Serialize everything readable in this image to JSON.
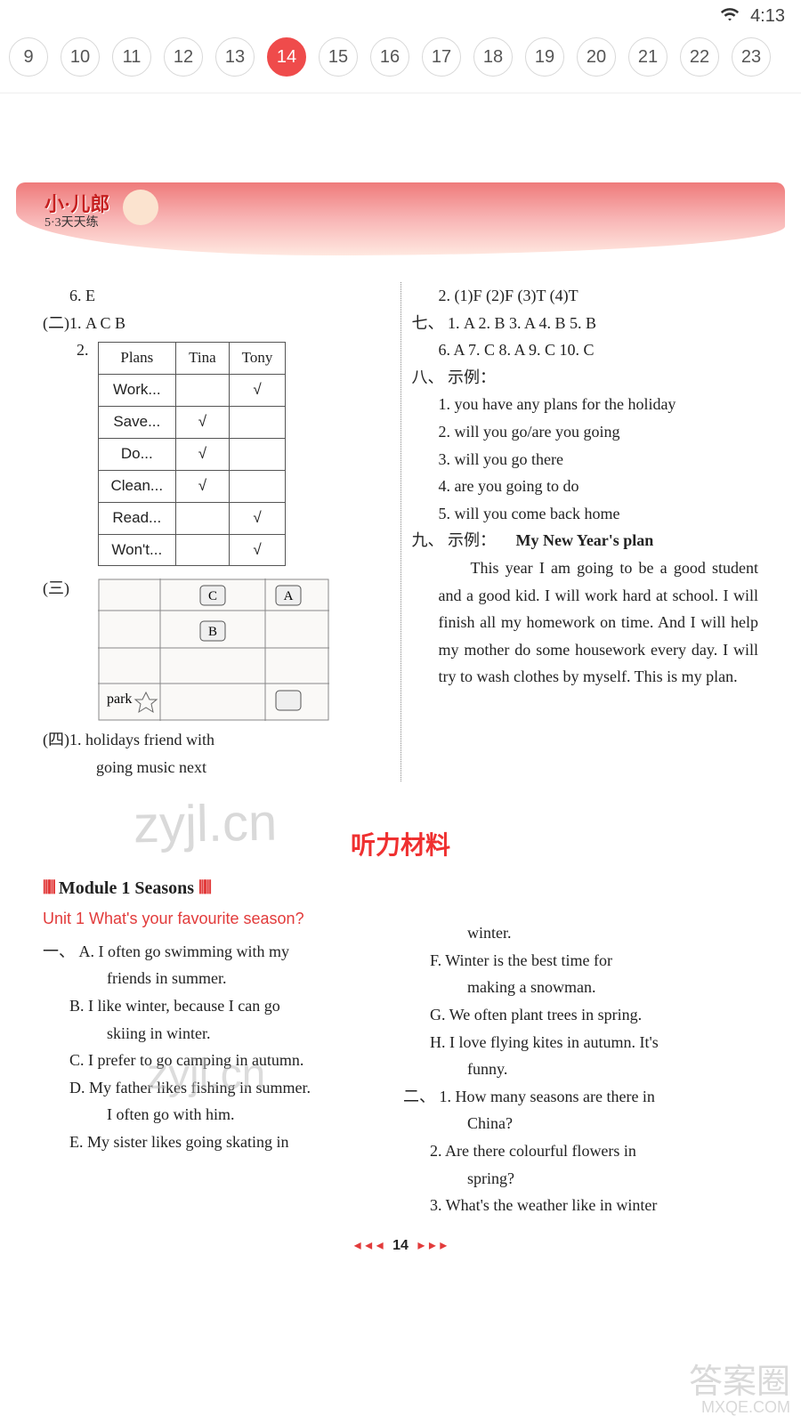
{
  "status": {
    "time": "4:13"
  },
  "tabs": {
    "items": [
      "9",
      "10",
      "11",
      "12",
      "13",
      "14",
      "15",
      "16",
      "17",
      "18",
      "19",
      "20",
      "21",
      "22",
      "23"
    ],
    "active_index": 5
  },
  "banner": {
    "logo": "小·儿郎",
    "sub": "5·3天天练"
  },
  "left": {
    "l6": "6. E",
    "s2_1": "(二)1.  A   C   B",
    "s2_2_label": "2.",
    "table": {
      "headers": [
        "Plans",
        "Tina",
        "Tony"
      ],
      "rows": [
        [
          "Work...",
          "",
          "√"
        ],
        [
          "Save...",
          "√",
          ""
        ],
        [
          "Do...",
          "√",
          ""
        ],
        [
          "Clean...",
          "√",
          ""
        ],
        [
          "Read...",
          "",
          "√"
        ],
        [
          "Won't...",
          "",
          "√"
        ]
      ]
    },
    "s3_label": "(三)",
    "map": {
      "park": "park",
      "a": "A",
      "b": "B",
      "c": "C"
    },
    "s4_1": "(四)1. holidays   friend   with",
    "s4_1b": "going   music   next"
  },
  "right": {
    "r2": "2. (1)F   (2)F   (3)T   (4)T",
    "q7a": "七、 1. A   2. B   3. A   4. B   5. B",
    "q7b": "6. A   7. C   8. A   9. C   10. C",
    "q8_label": "八、 示例：",
    "q8_1": "1. you have any plans for the holiday",
    "q8_2": "2. will you go/are you going",
    "q8_3": "3. will you go there",
    "q8_4": "4. are you going to do",
    "q8_5": "5. will you come back home",
    "q9_label": "九、 示例：",
    "q9_title": "My New Year's plan",
    "q9_body": "This year I am going to be a good student and a good kid. I will work hard at school. I will finish all my homework on time. And I will help my mother do some housework every day. I will try to wash clothes by myself. This is my plan."
  },
  "listening": {
    "title": "听力材料",
    "module": "Module 1   Seasons",
    "unit": "Unit 1  What's your favourite season?",
    "one_label": "一、",
    "a": "A. I often go swimming with my friends in summer.",
    "b": "B. I like winter, because I can go skiing in winter.",
    "c": "C. I prefer to go camping in autumn.",
    "d": "D. My father likes fishing in summer. I often go with him.",
    "e": "E. My sister likes going skating in",
    "e_cont": "winter.",
    "f": "F. Winter is the best time for making a snowman.",
    "g": "G. We often plant trees in spring.",
    "h": "H. I love flying kites in autumn. It's funny.",
    "two_label": "二、",
    "q1": "1. How many seasons are there in China?",
    "q2": "2. Are there colourful flowers in spring?",
    "q3": "3. What's the weather like in winter"
  },
  "pager": {
    "num": "14"
  },
  "watermarks": {
    "wm1": "zyjl.cn",
    "wm2": "zyjl.cn",
    "br_top": "答案圈",
    "br_sub": "MXQE.COM"
  }
}
